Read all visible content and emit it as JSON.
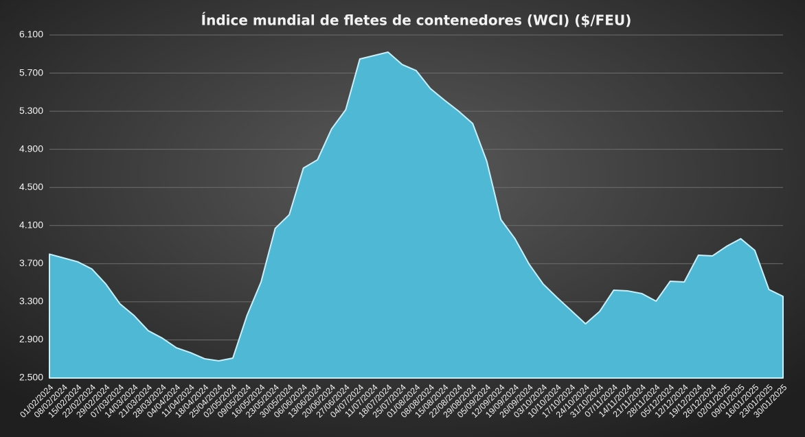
{
  "chart_data": {
    "type": "area",
    "title": "Índice mundial de fletes de contenedores (WCI) ($/FEU)",
    "categories": [
      "01/02/2024",
      "08/02/2024",
      "15/02/2024",
      "22/02/2024",
      "29/02/2024",
      "07/03/2024",
      "14/03/2024",
      "21/03/2024",
      "28/03/2024",
      "04/04/2024",
      "11/04/2024",
      "18/04/2024",
      "25/04/2024",
      "02/05/2024",
      "09/05/2024",
      "16/05/2024",
      "23/05/2024",
      "30/05/2024",
      "06/06/2024",
      "13/06/2024",
      "20/06/2024",
      "27/06/2024",
      "04/07/2024",
      "11/07/2024",
      "18/07/2024",
      "25/07/2024",
      "01/08/2024",
      "08/08/2024",
      "15/08/2024",
      "22/08/2024",
      "29/08/2024",
      "05/09/2024",
      "12/09/2024",
      "19/09/2024",
      "26/09/2024",
      "03/10/2024",
      "10/10/2024",
      "17/10/2024",
      "24/10/2024",
      "31/10/2024",
      "07/11/2024",
      "14/11/2024",
      "21/11/2024",
      "28/11/2024",
      "05/12/2024",
      "12/12/2024",
      "19/12/2024",
      "26/12/2024",
      "02/01/2025",
      "09/01/2025",
      "16/01/2025",
      "23/01/2025",
      "30/01/2025"
    ],
    "values": [
      3800,
      3760,
      3720,
      3645,
      3486,
      3278,
      3155,
      2997,
      2918,
      2817,
      2766,
      2702,
      2680,
      2709,
      3155,
      3508,
      4070,
      4214,
      4703,
      4790,
      5114,
      5315,
      5848,
      5884,
      5920,
      5790,
      5726,
      5538,
      5416,
      5301,
      5171,
      4775,
      4163,
      3962,
      3695,
      3486,
      3342,
      3206,
      3069,
      3198,
      3422,
      3414,
      3386,
      3306,
      3515,
      3508,
      3789,
      3782,
      3882,
      3962,
      3839,
      3429,
      3357
    ],
    "color": "#4fb8d4",
    "ylim": [
      2500,
      6100
    ],
    "yticks": [
      {
        "value": 2500,
        "label": "2.500"
      },
      {
        "value": 2900,
        "label": "2.900"
      },
      {
        "value": 3300,
        "label": "3.300"
      },
      {
        "value": 3700,
        "label": "3.700"
      },
      {
        "value": 4100,
        "label": "4.100"
      },
      {
        "value": 4500,
        "label": "4.500"
      },
      {
        "value": 4900,
        "label": "4.900"
      },
      {
        "value": 5300,
        "label": "5.300"
      },
      {
        "value": 5700,
        "label": "5.700"
      },
      {
        "value": 6100,
        "label": "6.100"
      }
    ],
    "grid": true
  }
}
